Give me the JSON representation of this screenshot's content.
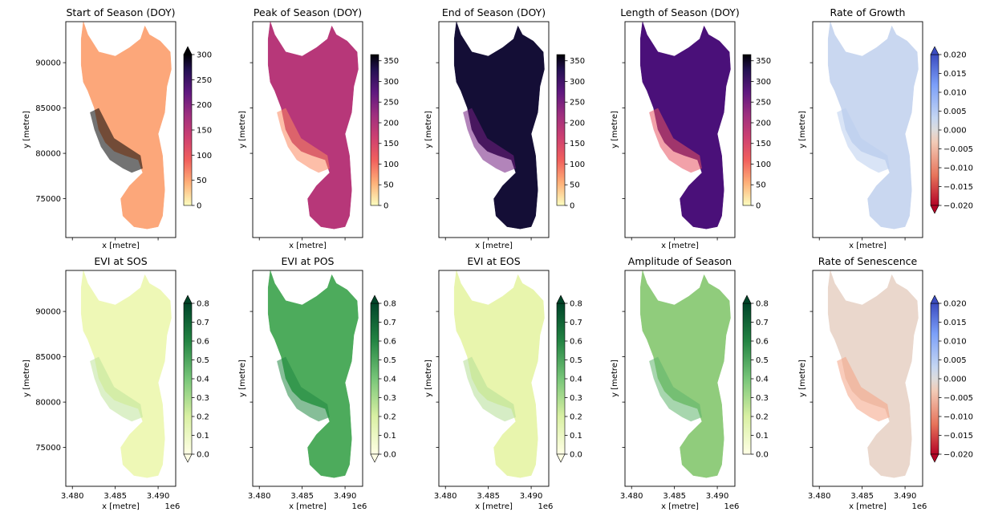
{
  "chart_data": [
    {
      "type": "heatmap",
      "title": "Start of Season (DOY)",
      "xlabel": "x [metre]",
      "ylabel": "y [metre]",
      "colormap": "magma_r",
      "clim": [
        0,
        300
      ],
      "cbar_ticks": [
        "0",
        "50",
        "100",
        "150",
        "200",
        "250",
        "300"
      ],
      "cbar_extend": "max",
      "yticks": [
        "75000",
        "80000",
        "85000",
        "90000"
      ],
      "xticks": [],
      "x_offset": "",
      "dominant_value": 85,
      "mid_color": "#fca77a",
      "fringe_color": "#000000"
    },
    {
      "type": "heatmap",
      "title": "Peak of Season (DOY)",
      "xlabel": "x [metre]",
      "ylabel": "y [metre]",
      "colormap": "magma_r",
      "clim": [
        0,
        365
      ],
      "cbar_ticks": [
        "0",
        "50",
        "100",
        "150",
        "200",
        "250",
        "300",
        "350"
      ],
      "cbar_extend": "none",
      "yticks": [],
      "xticks": [],
      "x_offset": "",
      "dominant_value": 200,
      "mid_color": "#b73779",
      "fringe_color": "#fb8861"
    },
    {
      "type": "heatmap",
      "title": "End of Season (DOY)",
      "xlabel": "x [metre]",
      "ylabel": "y [metre]",
      "colormap": "magma_r",
      "clim": [
        0,
        365
      ],
      "cbar_ticks": [
        "0",
        "50",
        "100",
        "150",
        "200",
        "250",
        "300",
        "350"
      ],
      "cbar_extend": "none",
      "yticks": [],
      "xticks": [],
      "x_offset": "",
      "dominant_value": 345,
      "mid_color": "#140e36",
      "fringe_color": "#721f81"
    },
    {
      "type": "heatmap",
      "title": "Length of Season (DOY)",
      "xlabel": "x [metre]",
      "ylabel": "y [metre]",
      "colormap": "magma_r",
      "clim": [
        0,
        365
      ],
      "cbar_ticks": [
        "0",
        "50",
        "100",
        "150",
        "200",
        "250",
        "300",
        "350"
      ],
      "cbar_extend": "none",
      "yticks": [],
      "xticks": [],
      "x_offset": "",
      "dominant_value": 290,
      "mid_color": "#4a1079",
      "fringe_color": "#e85362"
    },
    {
      "type": "heatmap",
      "title": "Rate of Growth",
      "xlabel": "x [metre]",
      "ylabel": "y [metre]",
      "colormap": "coolwarm_r",
      "clim": [
        -0.02,
        0.02
      ],
      "cbar_ticks": [
        "−0.020",
        "−0.015",
        "−0.010",
        "−0.005",
        "0.000",
        "0.005",
        "0.010",
        "0.015",
        "0.020"
      ],
      "cbar_extend": "both",
      "yticks": [],
      "xticks": [],
      "x_offset": "",
      "dominant_value": 0.004,
      "mid_color": "#c9d7f0",
      "fringe_color": "#b9cdef"
    },
    {
      "type": "heatmap",
      "title": "EVI at SOS",
      "xlabel": "x [metre]",
      "ylabel": "y [metre]",
      "colormap": "YlGn",
      "clim": [
        0,
        0.8
      ],
      "cbar_ticks": [
        "0.0",
        "0.1",
        "0.2",
        "0.3",
        "0.4",
        "0.5",
        "0.6",
        "0.7",
        "0.8"
      ],
      "cbar_extend": "both",
      "yticks": [
        "75000",
        "80000",
        "85000",
        "90000"
      ],
      "xticks": [
        "3.480",
        "3.485",
        "3.490"
      ],
      "x_offset": "1e6",
      "dominant_value": 0.15,
      "mid_color": "#eef8b6",
      "fringe_color": "#bfe39a"
    },
    {
      "type": "heatmap",
      "title": "EVI at POS",
      "xlabel": "x [metre]",
      "ylabel": "y [metre]",
      "colormap": "YlGn",
      "clim": [
        0,
        0.8
      ],
      "cbar_ticks": [
        "0.0",
        "0.1",
        "0.2",
        "0.3",
        "0.4",
        "0.5",
        "0.6",
        "0.7",
        "0.8"
      ],
      "cbar_extend": "both",
      "yticks": [],
      "xticks": [
        "3.480",
        "3.485",
        "3.490"
      ],
      "x_offset": "1e6",
      "dominant_value": 0.5,
      "mid_color": "#4dab5c",
      "fringe_color": "#228844"
    },
    {
      "type": "heatmap",
      "title": "EVI at EOS",
      "xlabel": "x [metre]",
      "ylabel": "y [metre]",
      "colormap": "YlGn",
      "clim": [
        0,
        0.8
      ],
      "cbar_ticks": [
        "0.0",
        "0.1",
        "0.2",
        "0.3",
        "0.4",
        "0.5",
        "0.6",
        "0.7",
        "0.8"
      ],
      "cbar_extend": "both",
      "yticks": [],
      "xticks": [
        "3.480",
        "3.485",
        "3.490"
      ],
      "x_offset": "1e6",
      "dominant_value": 0.2,
      "mid_color": "#e8f5ad",
      "fringe_color": "#b5de95"
    },
    {
      "type": "heatmap",
      "title": "Amplitude of Season",
      "xlabel": "x [metre]",
      "ylabel": "y [metre]",
      "colormap": "YlGn",
      "clim": [
        0,
        0.8
      ],
      "cbar_ticks": [
        "0.0",
        "0.1",
        "0.2",
        "0.3",
        "0.4",
        "0.5",
        "0.6",
        "0.7",
        "0.8"
      ],
      "cbar_extend": "max",
      "yticks": [],
      "xticks": [
        "3.480",
        "3.485",
        "3.490"
      ],
      "x_offset": "1e6",
      "dominant_value": 0.35,
      "mid_color": "#90cc7c",
      "fringe_color": "#5fb56b"
    },
    {
      "type": "heatmap",
      "title": "Rate of Senescence",
      "xlabel": "x [metre]",
      "ylabel": "y [metre]",
      "colormap": "coolwarm_r",
      "clim": [
        -0.02,
        0.02
      ],
      "cbar_ticks": [
        "−0.020",
        "−0.015",
        "−0.010",
        "−0.005",
        "0.000",
        "0.005",
        "0.010",
        "0.015",
        "0.020"
      ],
      "cbar_extend": "both",
      "yticks": [],
      "xticks": [
        "3.480",
        "3.485",
        "3.490"
      ],
      "x_offset": "1e6",
      "dominant_value": -0.002,
      "mid_color": "#ead7cc",
      "fringe_color": "#f4a283"
    }
  ]
}
